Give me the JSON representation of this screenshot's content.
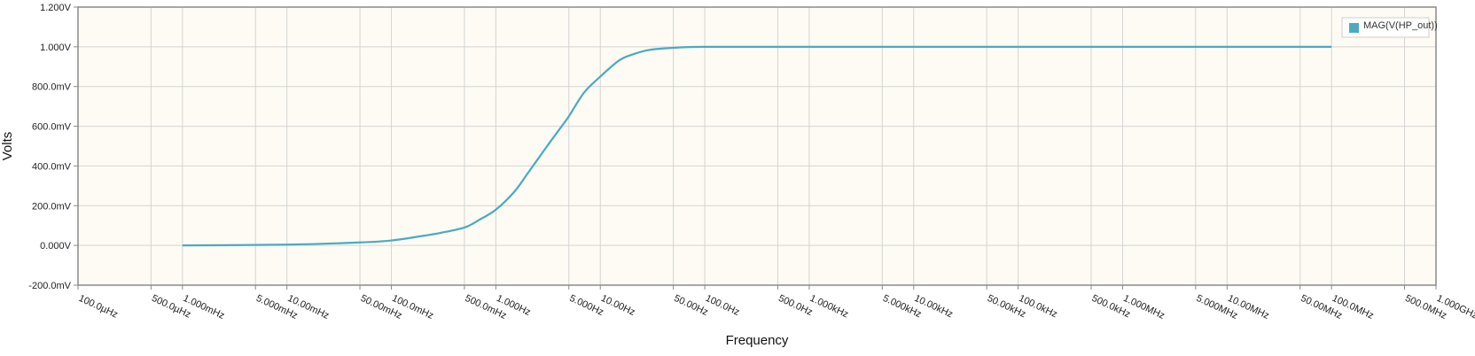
{
  "chart_data": {
    "type": "line",
    "xlabel": "Frequency",
    "ylabel": "Volts",
    "x_scale": "log",
    "xlim": [
      0.0001,
      1000000000
    ],
    "ylim": [
      -0.2,
      1.2
    ],
    "grid": true,
    "legend_position": "top-right",
    "x_ticks": [
      {
        "value": 0.0001,
        "label": "100.0µHz"
      },
      {
        "value": 0.0005,
        "label": "500.0µHz"
      },
      {
        "value": 0.001,
        "label": "1.000mHz"
      },
      {
        "value": 0.005,
        "label": "5.000mHz"
      },
      {
        "value": 0.01,
        "label": "10.00mHz"
      },
      {
        "value": 0.05,
        "label": "50.00mHz"
      },
      {
        "value": 0.1,
        "label": "100.0mHz"
      },
      {
        "value": 0.5,
        "label": "500.0mHz"
      },
      {
        "value": 1,
        "label": "1.000Hz"
      },
      {
        "value": 5,
        "label": "5.000Hz"
      },
      {
        "value": 10,
        "label": "10.00Hz"
      },
      {
        "value": 50,
        "label": "50.00Hz"
      },
      {
        "value": 100,
        "label": "100.0Hz"
      },
      {
        "value": 500,
        "label": "500.0Hz"
      },
      {
        "value": 1000,
        "label": "1.000kHz"
      },
      {
        "value": 5000,
        "label": "5.000kHz"
      },
      {
        "value": 10000,
        "label": "10.00kHz"
      },
      {
        "value": 50000,
        "label": "50.00kHz"
      },
      {
        "value": 100000,
        "label": "100.0kHz"
      },
      {
        "value": 500000,
        "label": "500.0kHz"
      },
      {
        "value": 1000000,
        "label": "1.000MHz"
      },
      {
        "value": 5000000,
        "label": "5.000MHz"
      },
      {
        "value": 10000000,
        "label": "10.00MHz"
      },
      {
        "value": 50000000,
        "label": "50.00MHz"
      },
      {
        "value": 100000000,
        "label": "100.0MHz"
      },
      {
        "value": 500000000,
        "label": "500.0MHz"
      },
      {
        "value": 1000000000,
        "label": "1.000GHz"
      }
    ],
    "y_ticks": [
      {
        "value": 1.2,
        "label": "1.200V"
      },
      {
        "value": 1.0,
        "label": "1.000V"
      },
      {
        "value": 0.8,
        "label": "800.0mV"
      },
      {
        "value": 0.6,
        "label": "600.0mV"
      },
      {
        "value": 0.4,
        "label": "400.0mV"
      },
      {
        "value": 0.2,
        "label": "200.0mV"
      },
      {
        "value": 0.0,
        "label": "0.000V"
      },
      {
        "value": -0.2,
        "label": "-200.0mV"
      }
    ],
    "series": [
      {
        "name": "MAG(V(HP_out))",
        "color": "#4aaac4",
        "x": [
          0.001,
          0.01,
          0.05,
          0.1,
          0.2,
          0.3,
          0.5,
          0.7,
          1,
          1.5,
          2,
          3,
          4,
          5,
          7,
          10,
          15,
          20,
          30,
          50,
          100,
          1000,
          100000,
          100000000
        ],
        "y": [
          0.0,
          0.004,
          0.015,
          0.025,
          0.048,
          0.064,
          0.09,
          0.13,
          0.18,
          0.27,
          0.36,
          0.49,
          0.58,
          0.65,
          0.77,
          0.85,
          0.93,
          0.96,
          0.985,
          0.995,
          1.0,
          1.0,
          1.0,
          1.0
        ]
      }
    ]
  }
}
